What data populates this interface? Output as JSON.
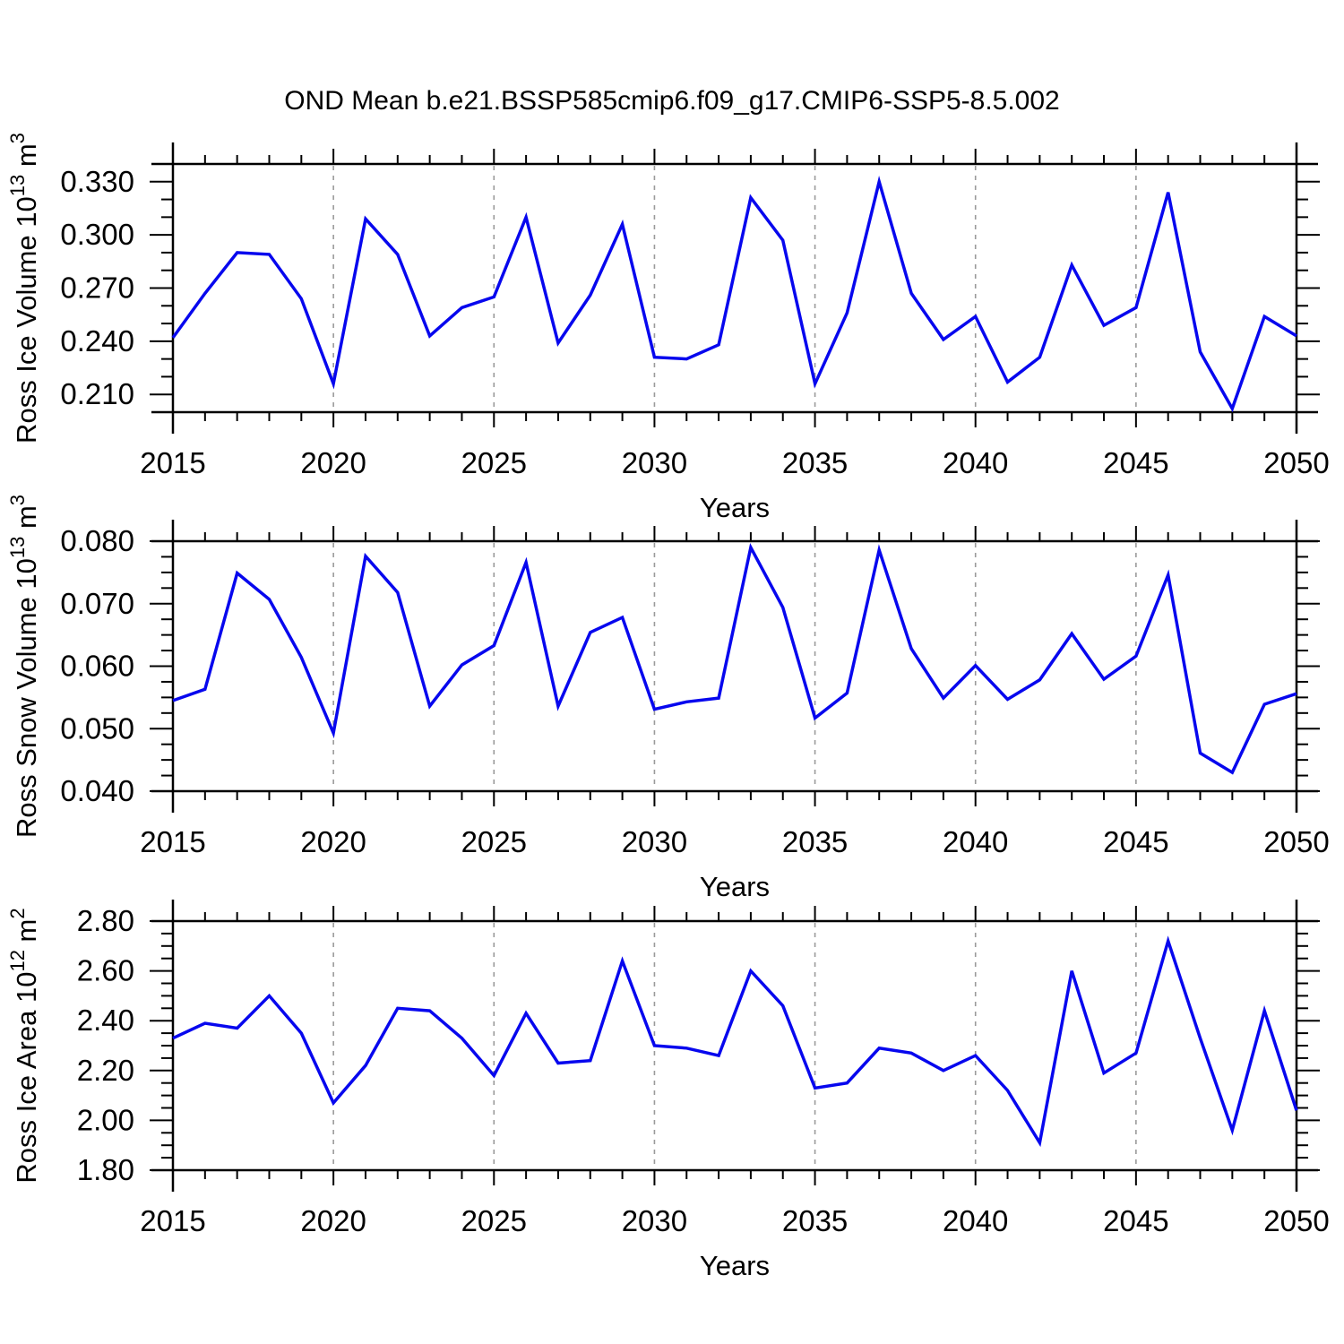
{
  "title": "OND Mean b.e21.BSSP585cmip6.f09_g17.CMIP6-SSP5-8.5.002",
  "xlabel": "Years",
  "line_color": "#0707ee",
  "grid_color": "#9a9a9a",
  "axis_color": "#000000",
  "x_major_tick_labels": [
    "2015",
    "2020",
    "2025",
    "2030",
    "2035",
    "2040",
    "2045",
    "2050"
  ],
  "grid_years": [
    2020,
    2025,
    2030,
    2035,
    2040,
    2045
  ],
  "chart_data": [
    {
      "type": "line",
      "name": "ross-ice-volume",
      "title": "OND Mean b.e21.BSSP585cmip6.f09_g17.CMIP6-SSP5-8.5.002",
      "xlabel": "Years",
      "ylabel": {
        "base": "Ross Ice Volume 10",
        "exp": "13",
        "unit": " m",
        "unit_exp": "3"
      },
      "ylim": [
        0.2,
        0.34
      ],
      "xlim": [
        2015,
        2050
      ],
      "ytick_labels": [
        "0.210",
        "0.240",
        "0.270",
        "0.300",
        "0.330"
      ],
      "ytick_values": [
        0.21,
        0.24,
        0.27,
        0.3,
        0.33
      ],
      "ytick_minor_step": 0.01,
      "grid": "vertical-dashed",
      "legend": "none",
      "x": [
        2015,
        2016,
        2017,
        2018,
        2019,
        2020,
        2021,
        2022,
        2023,
        2024,
        2025,
        2026,
        2027,
        2028,
        2029,
        2030,
        2031,
        2032,
        2033,
        2034,
        2035,
        2036,
        2037,
        2038,
        2039,
        2040,
        2041,
        2042,
        2043,
        2044,
        2045,
        2046,
        2047,
        2048,
        2049,
        2050
      ],
      "values": [
        0.242,
        0.267,
        0.29,
        0.289,
        0.264,
        0.216,
        0.309,
        0.289,
        0.243,
        0.259,
        0.265,
        0.31,
        0.239,
        0.266,
        0.306,
        0.231,
        0.23,
        0.238,
        0.321,
        0.297,
        0.216,
        0.256,
        0.33,
        0.267,
        0.241,
        0.254,
        0.217,
        0.231,
        0.283,
        0.249,
        0.259,
        0.324,
        0.234,
        0.202,
        0.254,
        0.243
      ]
    },
    {
      "type": "line",
      "name": "ross-snow-volume",
      "xlabel": "Years",
      "ylabel": {
        "base": "Ross Snow Volume 10",
        "exp": "13",
        "unit": " m",
        "unit_exp": "3"
      },
      "ylim": [
        0.04,
        0.08
      ],
      "xlim": [
        2015,
        2050
      ],
      "ytick_labels": [
        "0.040",
        "0.050",
        "0.060",
        "0.070",
        "0.080"
      ],
      "ytick_values": [
        0.04,
        0.05,
        0.06,
        0.07,
        0.08
      ],
      "ytick_minor_step": 0.0025,
      "grid": "vertical-dashed",
      "legend": "none",
      "x": [
        2015,
        2016,
        2017,
        2018,
        2019,
        2020,
        2021,
        2022,
        2023,
        2024,
        2025,
        2026,
        2027,
        2028,
        2029,
        2030,
        2031,
        2032,
        2033,
        2034,
        2035,
        2036,
        2037,
        2038,
        2039,
        2040,
        2041,
        2042,
        2043,
        2044,
        2045,
        2046,
        2047,
        2048,
        2049,
        2050
      ],
      "values": [
        0.0545,
        0.0563,
        0.0749,
        0.0707,
        0.0614,
        0.0493,
        0.0776,
        0.0718,
        0.0536,
        0.0602,
        0.0633,
        0.0766,
        0.0536,
        0.0654,
        0.0678,
        0.0531,
        0.0543,
        0.0549,
        0.079,
        0.0694,
        0.0517,
        0.0557,
        0.0786,
        0.0628,
        0.0549,
        0.0601,
        0.0547,
        0.0578,
        0.0652,
        0.0579,
        0.0616,
        0.0746,
        0.0461,
        0.043,
        0.0539,
        0.0556
      ]
    },
    {
      "type": "line",
      "name": "ross-ice-area",
      "xlabel": "Years",
      "ylabel": {
        "base": "Ross Ice Area 10",
        "exp": "12",
        "unit": " m",
        "unit_exp": "2"
      },
      "ylim": [
        1.8,
        2.8
      ],
      "xlim": [
        2015,
        2050
      ],
      "ytick_labels": [
        "1.80",
        "2.00",
        "2.20",
        "2.40",
        "2.60",
        "2.80"
      ],
      "ytick_values": [
        1.8,
        2.0,
        2.2,
        2.4,
        2.6,
        2.8
      ],
      "ytick_minor_step": 0.05,
      "grid": "vertical-dashed",
      "legend": "none",
      "x": [
        2015,
        2016,
        2017,
        2018,
        2019,
        2020,
        2021,
        2022,
        2023,
        2024,
        2025,
        2026,
        2027,
        2028,
        2029,
        2030,
        2031,
        2032,
        2033,
        2034,
        2035,
        2036,
        2037,
        2038,
        2039,
        2040,
        2041,
        2042,
        2043,
        2044,
        2045,
        2046,
        2047,
        2048,
        2049,
        2050
      ],
      "values": [
        2.33,
        2.39,
        2.37,
        2.5,
        2.35,
        2.07,
        2.22,
        2.45,
        2.44,
        2.33,
        2.18,
        2.43,
        2.23,
        2.24,
        2.64,
        2.3,
        2.29,
        2.26,
        2.6,
        2.46,
        2.13,
        2.15,
        2.29,
        2.27,
        2.2,
        2.26,
        2.12,
        1.91,
        2.6,
        2.19,
        2.27,
        2.72,
        2.33,
        1.96,
        2.44,
        2.04
      ]
    }
  ]
}
